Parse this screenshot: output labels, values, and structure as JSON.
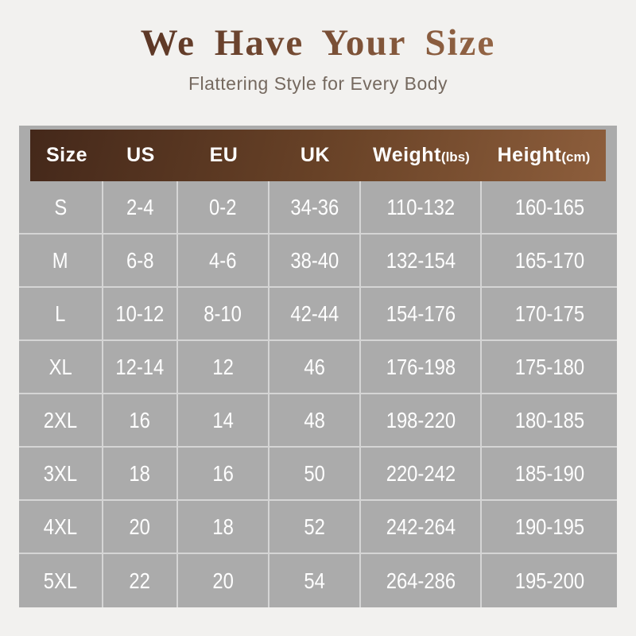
{
  "header": {
    "title": "We Have Your Size",
    "subtitle": "Flattering Style for Every Body"
  },
  "colors": {
    "page_bg": "#f2f1ef",
    "table_bg": "#ababab",
    "grid_line": "rgba(255,255,255,0.5)",
    "header_gradient_start": "#44281a",
    "header_gradient_end": "#8d5e3c",
    "header_text": "#ffffff",
    "cell_text": "#ffffff",
    "title_gradient_start": "#5a3524",
    "title_gradient_end": "#9a6a48",
    "subtitle_color": "#75695f"
  },
  "chart_data": {
    "type": "table",
    "title": "We Have Your Size",
    "subtitle": "Flattering Style for Every Body",
    "columns": [
      {
        "label": "Size",
        "unit": ""
      },
      {
        "label": "US",
        "unit": ""
      },
      {
        "label": "EU",
        "unit": ""
      },
      {
        "label": "UK",
        "unit": ""
      },
      {
        "label": "Weight",
        "unit": "(lbs)"
      },
      {
        "label": "Height",
        "unit": "(cm)"
      }
    ],
    "rows": [
      [
        "S",
        "2-4",
        "0-2",
        "34-36",
        "110-132",
        "160-165"
      ],
      [
        "M",
        "6-8",
        "4-6",
        "38-40",
        "132-154",
        "165-170"
      ],
      [
        "L",
        "10-12",
        "8-10",
        "42-44",
        "154-176",
        "170-175"
      ],
      [
        "XL",
        "12-14",
        "12",
        "46",
        "176-198",
        "175-180"
      ],
      [
        "2XL",
        "16",
        "14",
        "48",
        "198-220",
        "180-185"
      ],
      [
        "3XL",
        "18",
        "16",
        "50",
        "220-242",
        "185-190"
      ],
      [
        "4XL",
        "20",
        "18",
        "52",
        "242-264",
        "190-195"
      ],
      [
        "5XL",
        "22",
        "20",
        "54",
        "264-286",
        "195-200"
      ]
    ]
  }
}
